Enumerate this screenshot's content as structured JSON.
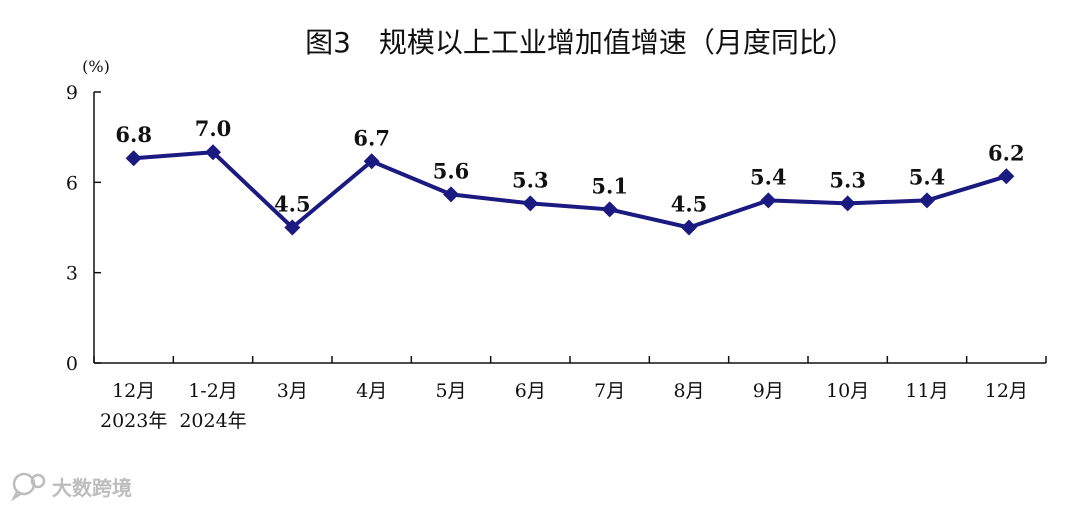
{
  "chart_data": {
    "type": "line",
    "title": "图3　规模以上工业增加值增速（月度同比）",
    "unit_label": "(%)",
    "categories": [
      "12月",
      "1-2月",
      "3月",
      "4月",
      "5月",
      "6月",
      "7月",
      "8月",
      "9月",
      "10月",
      "11月",
      "12月"
    ],
    "category_sublabels": [
      "2023年",
      "2024年",
      "",
      "",
      "",
      "",
      "",
      "",
      "",
      "",
      "",
      ""
    ],
    "values": [
      6.8,
      7.0,
      4.5,
      6.7,
      5.6,
      5.3,
      5.1,
      4.5,
      5.4,
      5.3,
      5.4,
      6.2
    ],
    "value_labels": [
      "6.8",
      "7.0",
      "4.5",
      "6.7",
      "5.6",
      "5.3",
      "5.1",
      "4.5",
      "5.4",
      "5.3",
      "5.4",
      "6.2"
    ],
    "ylim": [
      0,
      9
    ],
    "yticks": [
      "0",
      "3",
      "6",
      "9"
    ],
    "grid": false,
    "line_color": "#1a1a80"
  },
  "watermark": {
    "text": "大数跨境",
    "icon": "chat-bubble-icon"
  }
}
